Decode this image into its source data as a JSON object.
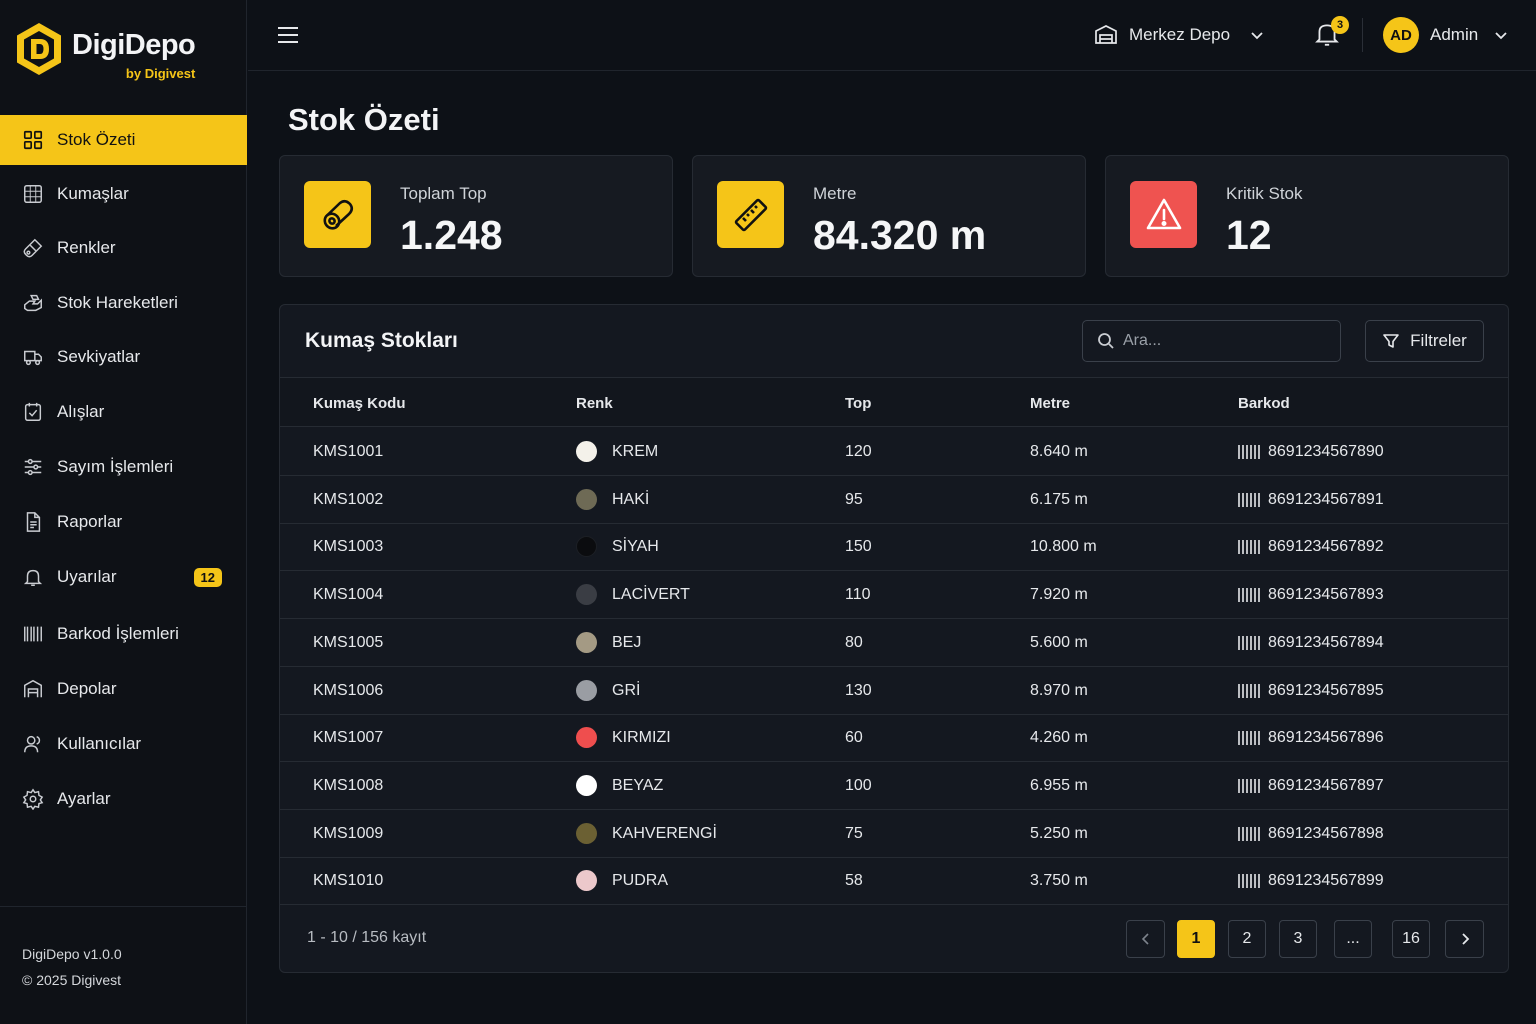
{
  "brand": {
    "name": "DigiDepo",
    "by": "by Digivest"
  },
  "sidebar": {
    "items": [
      {
        "label": "Stok Özeti",
        "icon": "grid-icon",
        "active": true
      },
      {
        "label": "Kumaşlar",
        "icon": "fabric-icon"
      },
      {
        "label": "Renkler",
        "icon": "palette-icon"
      },
      {
        "label": "Stok Hareketleri",
        "icon": "box-move-icon"
      },
      {
        "label": "Sevkiyatlar",
        "icon": "truck-icon"
      },
      {
        "label": "Alışlar",
        "icon": "purchase-check-icon"
      },
      {
        "label": "Sayım İşlemleri",
        "icon": "layers-icon"
      },
      {
        "label": "Raporlar",
        "icon": "report-icon"
      },
      {
        "label": "Uyarılar",
        "icon": "bell-icon",
        "badge": "12"
      },
      {
        "label": "Barkod İşlemleri",
        "icon": "barcode-icon"
      },
      {
        "label": "Depolar",
        "icon": "warehouse-icon"
      },
      {
        "label": "Kullanıcılar",
        "icon": "users-icon"
      },
      {
        "label": "Ayarlar",
        "icon": "gear-icon"
      }
    ],
    "footer": {
      "version": "DigiDepo v1.0.0",
      "copyright": "© 2025 Digivest"
    }
  },
  "topbar": {
    "warehouse": "Merkez Depo",
    "notifications": "3",
    "user_initials": "AD",
    "user_name": "Admin"
  },
  "page_title": "Stok Özeti",
  "stats": [
    {
      "label": "Toplam Top",
      "value": "1.248",
      "icon": "fabric-roll-icon",
      "color": "#f5c518"
    },
    {
      "label": "Metre",
      "value": "84.320 m",
      "icon": "ruler-icon",
      "color": "#f5c518"
    },
    {
      "label": "Kritik Stok",
      "value": "12",
      "icon": "warning-icon",
      "color": "#ef5350"
    }
  ],
  "table": {
    "title": "Kumaş Stokları",
    "search_placeholder": "Ara...",
    "filter_label": "Filtreler",
    "columns": [
      "Kumaş Kodu",
      "Renk",
      "Top",
      "Metre",
      "Barkod"
    ],
    "rows": [
      {
        "code": "KMS1001",
        "color": "KREM",
        "swatch": "#f4f1ea",
        "top": "120",
        "metre": "8.640 m",
        "barcode": "8691234567890"
      },
      {
        "code": "KMS1002",
        "color": "HAKİ",
        "swatch": "#6e6a55",
        "top": "95",
        "metre": "6.175 m",
        "barcode": "8691234567891"
      },
      {
        "code": "KMS1003",
        "color": "SİYAH",
        "swatch": "#0b0c0f",
        "top": "150",
        "metre": "10.800 m",
        "barcode": "8691234567892"
      },
      {
        "code": "KMS1004",
        "color": "LACİVERT",
        "swatch": "#3a3d44",
        "top": "110",
        "metre": "7.920 m",
        "barcode": "8691234567893"
      },
      {
        "code": "KMS1005",
        "color": "BEJ",
        "swatch": "#a49a84",
        "top": "80",
        "metre": "5.600 m",
        "barcode": "8691234567894"
      },
      {
        "code": "KMS1006",
        "color": "GRİ",
        "swatch": "#9a9da3",
        "top": "130",
        "metre": "8.970 m",
        "barcode": "8691234567895"
      },
      {
        "code": "KMS1007",
        "color": "KIRMIZI",
        "swatch": "#ef4e4e",
        "top": "60",
        "metre": "4.260 m",
        "barcode": "8691234567896"
      },
      {
        "code": "KMS1008",
        "color": "BEYAZ",
        "swatch": "#ffffff",
        "top": "100",
        "metre": "6.955 m",
        "barcode": "8691234567897"
      },
      {
        "code": "KMS1009",
        "color": "KAHVERENGİ",
        "swatch": "#6b6033",
        "top": "75",
        "metre": "5.250 m",
        "barcode": "8691234567898"
      },
      {
        "code": "KMS1010",
        "color": "PUDRA",
        "swatch": "#ecc8cb",
        "top": "58",
        "metre": "3.750 m",
        "barcode": "8691234567899"
      }
    ],
    "pagination": {
      "info": "1 - 10 / 156 kayıt",
      "pages": [
        "1",
        "2",
        "3",
        "...",
        "16"
      ],
      "current": "1"
    }
  },
  "colors": {
    "accent": "#f5c518",
    "danger": "#ef5350",
    "background": "#0d1117"
  }
}
